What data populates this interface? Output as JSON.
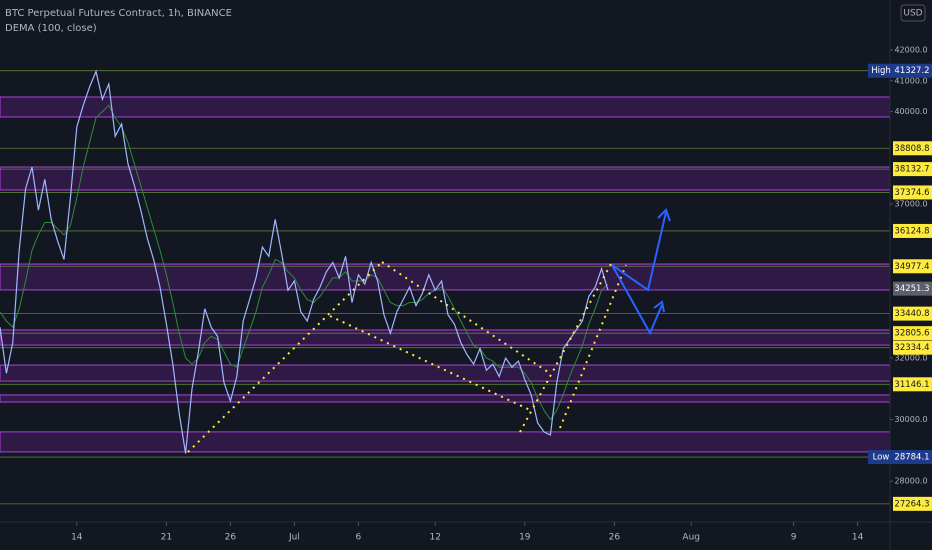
{
  "chart_data": {
    "type": "line",
    "title": "BTC Perpetual Futures Contract, 1h, BINANCE",
    "y_unit": "USD",
    "categories": [
      null,
      null,
      null,
      null,
      null,
      null,
      null,
      null,
      null,
      null,
      null,
      null,
      "14",
      null,
      null,
      null,
      null,
      null,
      null,
      null,
      null,
      null,
      null,
      null,
      null,
      null,
      "21",
      null,
      null,
      null,
      null,
      null,
      null,
      null,
      null,
      null,
      "26",
      null,
      null,
      null,
      null,
      null,
      null,
      null,
      null,
      null,
      "Jul",
      null,
      null,
      null,
      null,
      null,
      null,
      null,
      null,
      null,
      "6",
      null,
      null,
      null,
      null,
      null,
      null,
      null,
      null,
      null,
      null,
      null,
      "12",
      null,
      null,
      null,
      null,
      null,
      null,
      null,
      null,
      null,
      null,
      null,
      null,
      null,
      "19",
      null,
      null,
      null,
      null,
      null,
      null,
      null,
      null,
      null,
      null,
      null,
      null,
      null,
      "26",
      null,
      null,
      null,
      null,
      null,
      null,
      null,
      null,
      null,
      null,
      null,
      "Aug",
      null,
      null,
      null,
      null,
      null,
      null,
      null,
      null,
      null,
      null,
      null,
      null,
      null,
      null,
      null,
      "9",
      null,
      null,
      null,
      null,
      null,
      null,
      null,
      null,
      null,
      "14",
      null,
      null,
      null,
      null,
      null
    ],
    "series": [
      {
        "color": "#9fb8ff",
        "values": [
          33000,
          31500,
          32500,
          35500,
          37500,
          38200,
          36800,
          37800,
          36500,
          35800,
          35200,
          37200,
          39500,
          40200,
          40800,
          41300,
          40400,
          40900,
          39200,
          39600,
          38300,
          37600,
          36800,
          35900,
          35200,
          34300,
          33100,
          31800,
          30200,
          28900,
          31000,
          32200,
          33600,
          33000,
          32700,
          31200,
          30600,
          31400,
          33200,
          33900,
          34600,
          35600,
          35300,
          36500,
          35400,
          34200,
          34500,
          33500,
          33200,
          33900,
          34300,
          34800,
          35100,
          34600,
          35300,
          33800,
          34700,
          34400,
          35100,
          34500,
          33400,
          32800,
          33500,
          33900,
          34300,
          33700,
          34100,
          34700,
          34200,
          34500,
          33400,
          33100,
          32500,
          32100,
          31800,
          32300,
          31600,
          31800,
          31400,
          32000,
          31700,
          31900,
          31300,
          30800,
          29900,
          29600,
          29500,
          31200,
          32300,
          32600,
          32900,
          33200,
          34000,
          34300,
          34900,
          34200,
          null,
          null,
          null,
          null,
          null,
          null,
          null,
          null,
          null,
          null,
          null,
          null,
          null,
          null,
          null,
          null,
          null,
          null,
          null,
          null,
          null,
          null,
          null,
          null,
          null,
          null,
          null,
          null,
          null,
          null,
          null,
          null,
          null,
          null,
          null,
          null,
          null,
          null,
          null,
          null,
          null,
          null,
          null,
          null
        ]
      },
      {
        "name": "DEMA (100, close)",
        "color": "#2e8b3a",
        "values": [
          33500,
          33200,
          33000,
          33600,
          34500,
          35500,
          36000,
          36400,
          36400,
          36200,
          36000,
          36300,
          37200,
          38200,
          39000,
          39800,
          40000,
          40200,
          39800,
          39500,
          39000,
          38300,
          37600,
          36900,
          36200,
          35500,
          34700,
          33800,
          32800,
          32000,
          31800,
          32000,
          32500,
          32700,
          32600,
          32200,
          31800,
          31700,
          32300,
          32900,
          33500,
          34300,
          34700,
          35200,
          35100,
          34800,
          34600,
          34200,
          33900,
          33800,
          34000,
          34300,
          34600,
          34600,
          34800,
          34500,
          34500,
          34500,
          34700,
          34600,
          34200,
          33800,
          33700,
          33700,
          33800,
          33800,
          33900,
          34100,
          34200,
          34300,
          34000,
          33600,
          33200,
          32800,
          32400,
          32300,
          32000,
          31900,
          31700,
          31700,
          31700,
          31700,
          31500,
          31200,
          30700,
          30300,
          30000,
          30300,
          30800,
          31400,
          31900,
          32400,
          33100,
          33600,
          34200,
          34400,
          null,
          null,
          null,
          null,
          null,
          null,
          null,
          null,
          null,
          null,
          null,
          null,
          null,
          null,
          null,
          null,
          null,
          null,
          null,
          null,
          null,
          null,
          null,
          null,
          null,
          null,
          null,
          null,
          null,
          null,
          null,
          null,
          null,
          null,
          null,
          null,
          null,
          null,
          null,
          null,
          null,
          null,
          null,
          null
        ]
      }
    ],
    "ylim": [
      26675,
      43623
    ],
    "yticks": [
      {
        "value": 42000,
        "label": "42000.0"
      },
      {
        "value": 41000,
        "label": "41000.0"
      },
      {
        "value": 40000,
        "label": "40000.0"
      },
      {
        "value": 37000,
        "label": "37000.0"
      },
      {
        "value": 32000,
        "label": "32000.0"
      },
      {
        "value": 30000,
        "label": "30000.0"
      },
      {
        "value": 28000,
        "label": "28000.0"
      }
    ],
    "high": {
      "label": "High",
      "value": 41327.2
    },
    "low": {
      "label": "Low",
      "value": 28784.1
    },
    "last_price": 34251.3,
    "levels": [
      38808.8,
      38132.7,
      37374.6,
      36124.8,
      34977.4,
      33440.8,
      32805.6,
      32334.4,
      31146.1,
      27264.3
    ],
    "zone_color": "#7b1fa2",
    "zones": [
      [
        39825,
        40474
      ],
      [
        37455,
        38200
      ],
      [
        34210,
        35050
      ],
      [
        32420,
        32910
      ],
      [
        31250,
        31770
      ],
      [
        30570,
        30800
      ],
      [
        28950,
        29600
      ]
    ]
  }
}
